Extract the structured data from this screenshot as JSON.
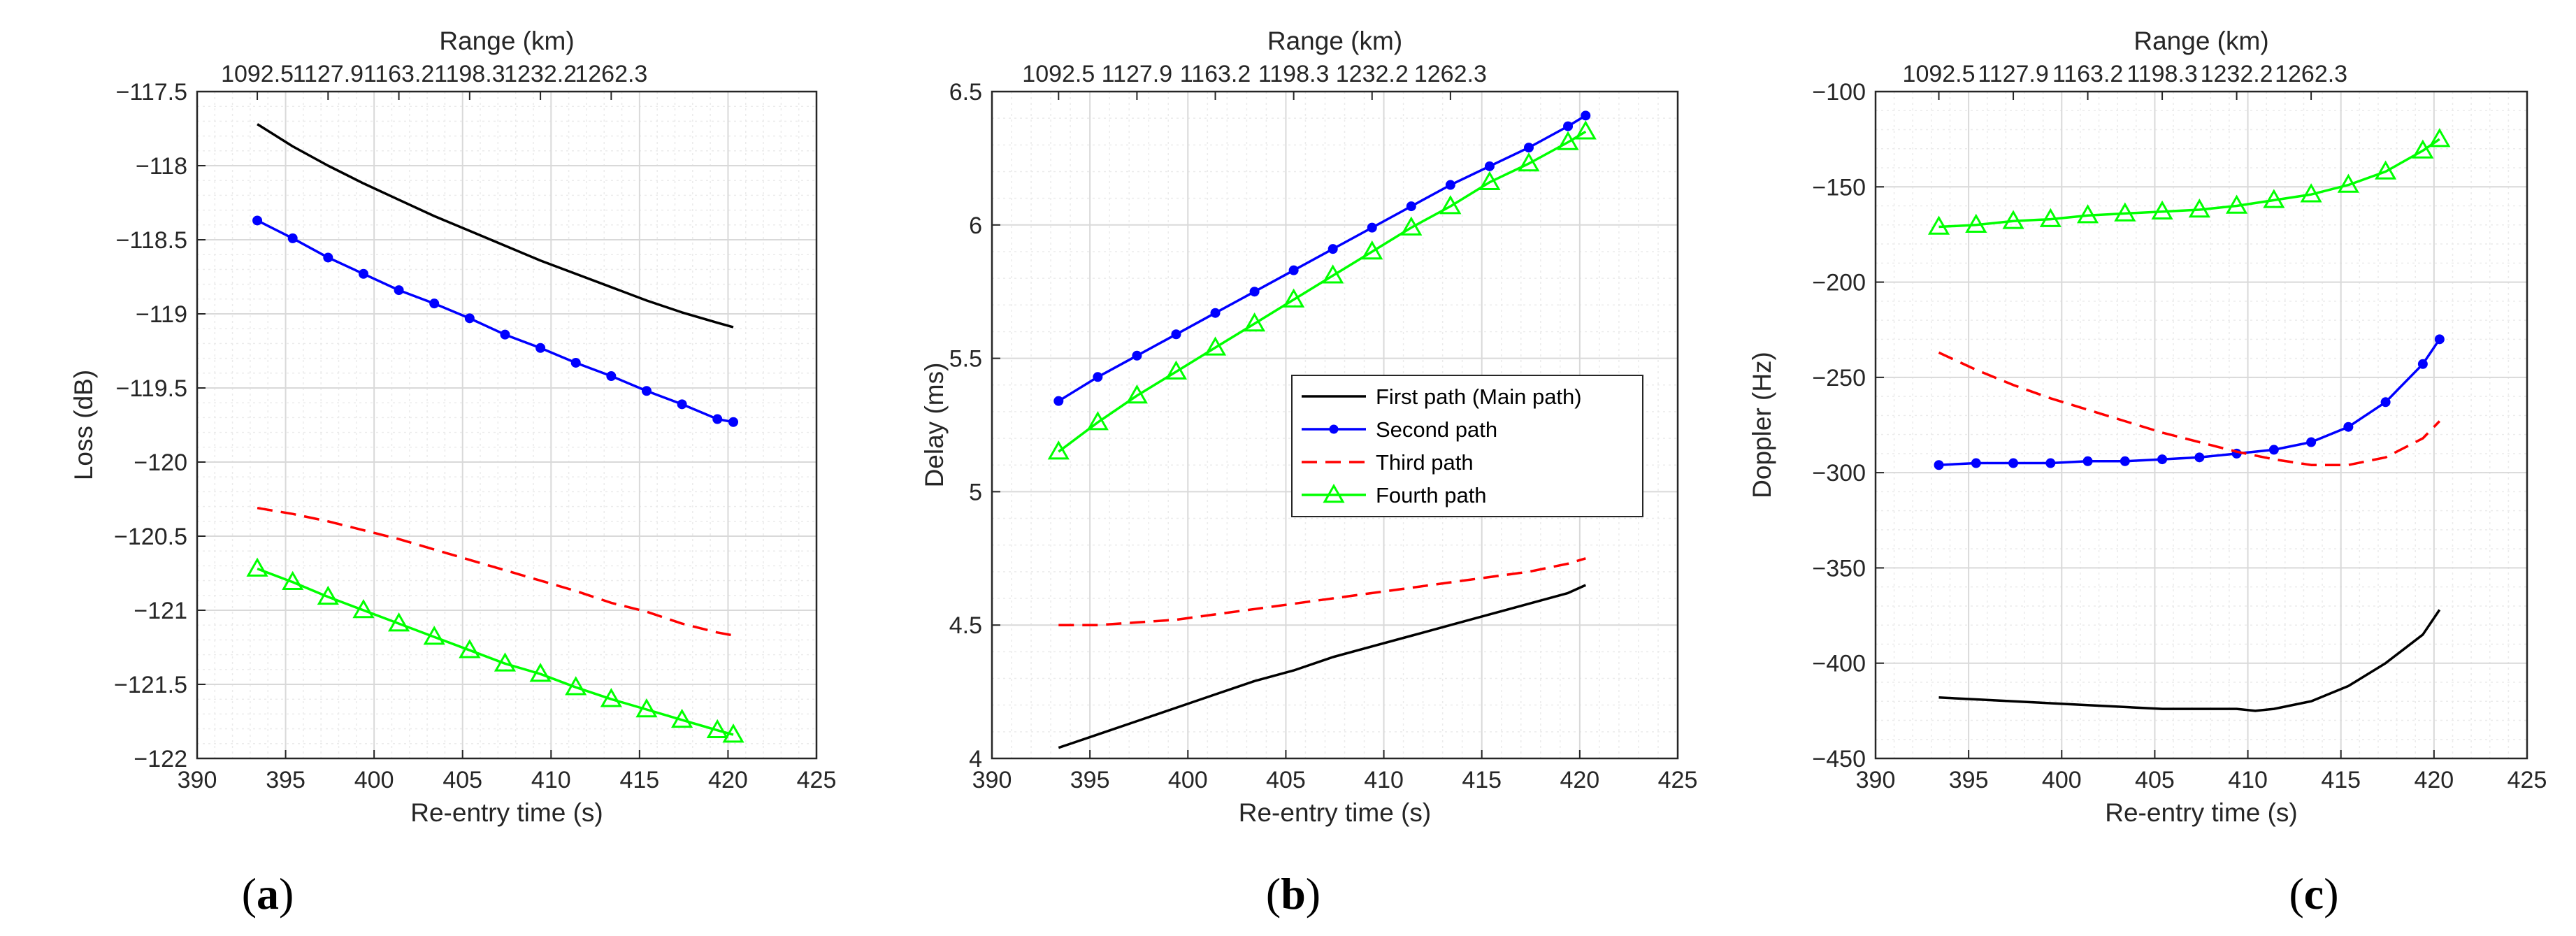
{
  "colors": {
    "first": "#000000",
    "second": "#0000ff",
    "third": "#ff0000",
    "fourth": "#00ff00",
    "grid": "#d9d9d9",
    "minor_grid": "#ebebeb",
    "axis": "#262626"
  },
  "series_styles": [
    {
      "key": "first",
      "color": "#000000",
      "dash": "solid",
      "marker": "none"
    },
    {
      "key": "second",
      "color": "#0000ff",
      "dash": "solid",
      "marker": "dot"
    },
    {
      "key": "third",
      "color": "#ff0000",
      "dash": "dashed",
      "marker": "none"
    },
    {
      "key": "fourth",
      "color": "#00ff00",
      "dash": "solid",
      "marker": "triangle"
    }
  ],
  "legend": {
    "entries": [
      "First path (Main path)",
      "Second path",
      "Third path",
      "Fourth path"
    ]
  },
  "chart_data": [
    {
      "type": "line",
      "caption": "a",
      "title": "",
      "xlabel": "Re-entry time (s)",
      "ylabel": "Loss (dB)",
      "top_xlabel": "Range (km)",
      "xlim": [
        390,
        425
      ],
      "ylim": [
        -122,
        -117.5
      ],
      "xticks": [
        "390",
        "395",
        "400",
        "405",
        "410",
        "415",
        "420",
        "425"
      ],
      "yticks": [
        "-117.5",
        "-118",
        "-118.5",
        "-119",
        "-119.5",
        "-120",
        "-120.5",
        "-121",
        "-121.5",
        "-122"
      ],
      "top_ticks": [
        "1092.5",
        "1127.9",
        "1163.2",
        "1198.3",
        "1232.2",
        "1262.3"
      ],
      "grid": true,
      "series": [
        {
          "name": "First path (Main path)",
          "x": [
            393.4,
            395.4,
            397.4,
            399.4,
            401.4,
            403.4,
            405.4,
            407.4,
            409.4,
            411.4,
            413.4,
            415.4,
            417.4,
            419.4,
            420.3
          ],
          "values": [
            -117.72,
            -117.87,
            -118.0,
            -118.12,
            -118.23,
            -118.34,
            -118.44,
            -118.54,
            -118.64,
            -118.73,
            -118.82,
            -118.91,
            -118.99,
            -119.06,
            -119.09
          ]
        },
        {
          "name": "Second path",
          "x": [
            393.4,
            395.4,
            397.4,
            399.4,
            401.4,
            403.4,
            405.4,
            407.4,
            409.4,
            411.4,
            413.4,
            415.4,
            417.4,
            419.4,
            420.3
          ],
          "values": [
            -118.37,
            -118.49,
            -118.62,
            -118.73,
            -118.84,
            -118.93,
            -119.03,
            -119.14,
            -119.23,
            -119.33,
            -119.42,
            -119.52,
            -119.61,
            -119.71,
            -119.73
          ]
        },
        {
          "name": "Third path",
          "x": [
            393.4,
            395.4,
            397.4,
            399.4,
            401.4,
            403.4,
            405.4,
            407.4,
            409.4,
            411.4,
            413.4,
            415.4,
            417.4,
            419.4,
            420.3
          ],
          "values": [
            -120.31,
            -120.35,
            -120.4,
            -120.46,
            -120.52,
            -120.59,
            -120.66,
            -120.73,
            -120.8,
            -120.87,
            -120.95,
            -121.01,
            -121.09,
            -121.15,
            -121.17
          ]
        },
        {
          "name": "Fourth path",
          "x": [
            393.4,
            395.4,
            397.4,
            399.4,
            401.4,
            403.4,
            405.4,
            407.4,
            409.4,
            411.4,
            413.4,
            415.4,
            417.4,
            419.4,
            420.3
          ],
          "values": [
            -120.72,
            -120.81,
            -120.91,
            -121.0,
            -121.09,
            -121.18,
            -121.27,
            -121.36,
            -121.43,
            -121.52,
            -121.6,
            -121.67,
            -121.74,
            -121.81,
            -121.84
          ]
        }
      ]
    },
    {
      "type": "line",
      "caption": "b",
      "title": "",
      "xlabel": "Re-entry time (s)",
      "ylabel": "Delay (ms)",
      "top_xlabel": "Range (km)",
      "xlim": [
        390,
        425
      ],
      "ylim": [
        4,
        6.5
      ],
      "xticks": [
        "390",
        "395",
        "400",
        "405",
        "410",
        "415",
        "420",
        "425"
      ],
      "yticks": [
        "4",
        "4.5",
        "5",
        "5.5",
        "6",
        "6.5"
      ],
      "top_ticks": [
        "1092.5",
        "1127.9",
        "1163.2",
        "1198.3",
        "1232.2",
        "1262.3"
      ],
      "grid": true,
      "legend_position": "center-right",
      "series": [
        {
          "name": "First path (Main path)",
          "x": [
            393.4,
            395.4,
            397.4,
            399.4,
            401.4,
            403.4,
            405.4,
            407.4,
            409.4,
            411.4,
            413.4,
            415.4,
            417.4,
            419.4,
            420.3
          ],
          "values": [
            4.04,
            4.09,
            4.14,
            4.19,
            4.24,
            4.29,
            4.33,
            4.38,
            4.42,
            4.46,
            4.5,
            4.54,
            4.58,
            4.62,
            4.65
          ]
        },
        {
          "name": "Second path",
          "x": [
            393.4,
            395.4,
            397.4,
            399.4,
            401.4,
            403.4,
            405.4,
            407.4,
            409.4,
            411.4,
            413.4,
            415.4,
            417.4,
            419.4,
            420.3
          ],
          "values": [
            5.34,
            5.43,
            5.51,
            5.59,
            5.67,
            5.75,
            5.83,
            5.91,
            5.99,
            6.07,
            6.15,
            6.22,
            6.29,
            6.37,
            6.41
          ]
        },
        {
          "name": "Third path",
          "x": [
            393.4,
            395.4,
            397.4,
            399.4,
            401.4,
            403.4,
            405.4,
            407.4,
            409.4,
            411.4,
            413.4,
            415.4,
            417.4,
            419.4,
            420.3
          ],
          "values": [
            4.5,
            4.5,
            4.51,
            4.52,
            4.54,
            4.56,
            4.58,
            4.6,
            4.62,
            4.64,
            4.66,
            4.68,
            4.7,
            4.73,
            4.75
          ]
        },
        {
          "name": "Fourth path",
          "x": [
            393.4,
            395.4,
            397.4,
            399.4,
            401.4,
            403.4,
            405.4,
            407.4,
            409.4,
            411.4,
            413.4,
            415.4,
            417.4,
            419.4,
            420.3
          ],
          "values": [
            5.15,
            5.26,
            5.36,
            5.45,
            5.54,
            5.63,
            5.72,
            5.81,
            5.9,
            5.99,
            6.07,
            6.16,
            6.23,
            6.31,
            6.35
          ]
        }
      ]
    },
    {
      "type": "line",
      "caption": "c",
      "title": "",
      "xlabel": "Re-entry time (s)",
      "ylabel": "Doppler (Hz)",
      "top_xlabel": "Range (km)",
      "xlim": [
        390,
        425
      ],
      "ylim": [
        -450,
        -100
      ],
      "xticks": [
        "390",
        "395",
        "400",
        "405",
        "410",
        "415",
        "420",
        "425"
      ],
      "yticks": [
        "-100",
        "-150",
        "-200",
        "-250",
        "-300",
        "-350",
        "-400",
        "-450"
      ],
      "top_ticks": [
        "1092.5",
        "1127.9",
        "1163.2",
        "1198.3",
        "1232.2",
        "1262.3"
      ],
      "grid": true,
      "series": [
        {
          "name": "First path (Main path)",
          "x": [
            393.4,
            395.4,
            397.4,
            399.4,
            401.4,
            403.4,
            405.4,
            407.4,
            409.4,
            410.4,
            411.4,
            413.4,
            415.4,
            417.4,
            419.4,
            420.3
          ],
          "values": [
            -418,
            -419,
            -420,
            -421,
            -422,
            -423,
            -424,
            -424,
            -424,
            -425,
            -424,
            -420,
            -412,
            -400,
            -385,
            -372
          ]
        },
        {
          "name": "Second path",
          "x": [
            393.4,
            395.4,
            397.4,
            399.4,
            401.4,
            403.4,
            405.4,
            407.4,
            409.4,
            411.4,
            413.4,
            415.4,
            417.4,
            419.4,
            420.3
          ],
          "values": [
            -296,
            -295,
            -295,
            -295,
            -294,
            -294,
            -293,
            -292,
            -290,
            -288,
            -284,
            -276,
            -263,
            -243,
            -230
          ]
        },
        {
          "name": "Third path",
          "x": [
            393.4,
            395.4,
            397.4,
            399.4,
            401.4,
            403.4,
            405.4,
            407.4,
            409.4,
            411.4,
            413.4,
            415.4,
            417.4,
            419.4,
            420.3
          ],
          "values": [
            -237,
            -246,
            -254,
            -261,
            -267,
            -273,
            -279,
            -284,
            -289,
            -293,
            -296,
            -296,
            -292,
            -282,
            -273
          ]
        },
        {
          "name": "Fourth path",
          "x": [
            393.4,
            395.4,
            397.4,
            399.4,
            401.4,
            403.4,
            405.4,
            407.4,
            409.4,
            411.4,
            413.4,
            415.4,
            417.4,
            419.4,
            420.3
          ],
          "values": [
            -171,
            -170,
            -168,
            -167,
            -165,
            -164,
            -163,
            -162,
            -160,
            -157,
            -154,
            -149,
            -142,
            -131,
            -125
          ]
        }
      ]
    }
  ]
}
